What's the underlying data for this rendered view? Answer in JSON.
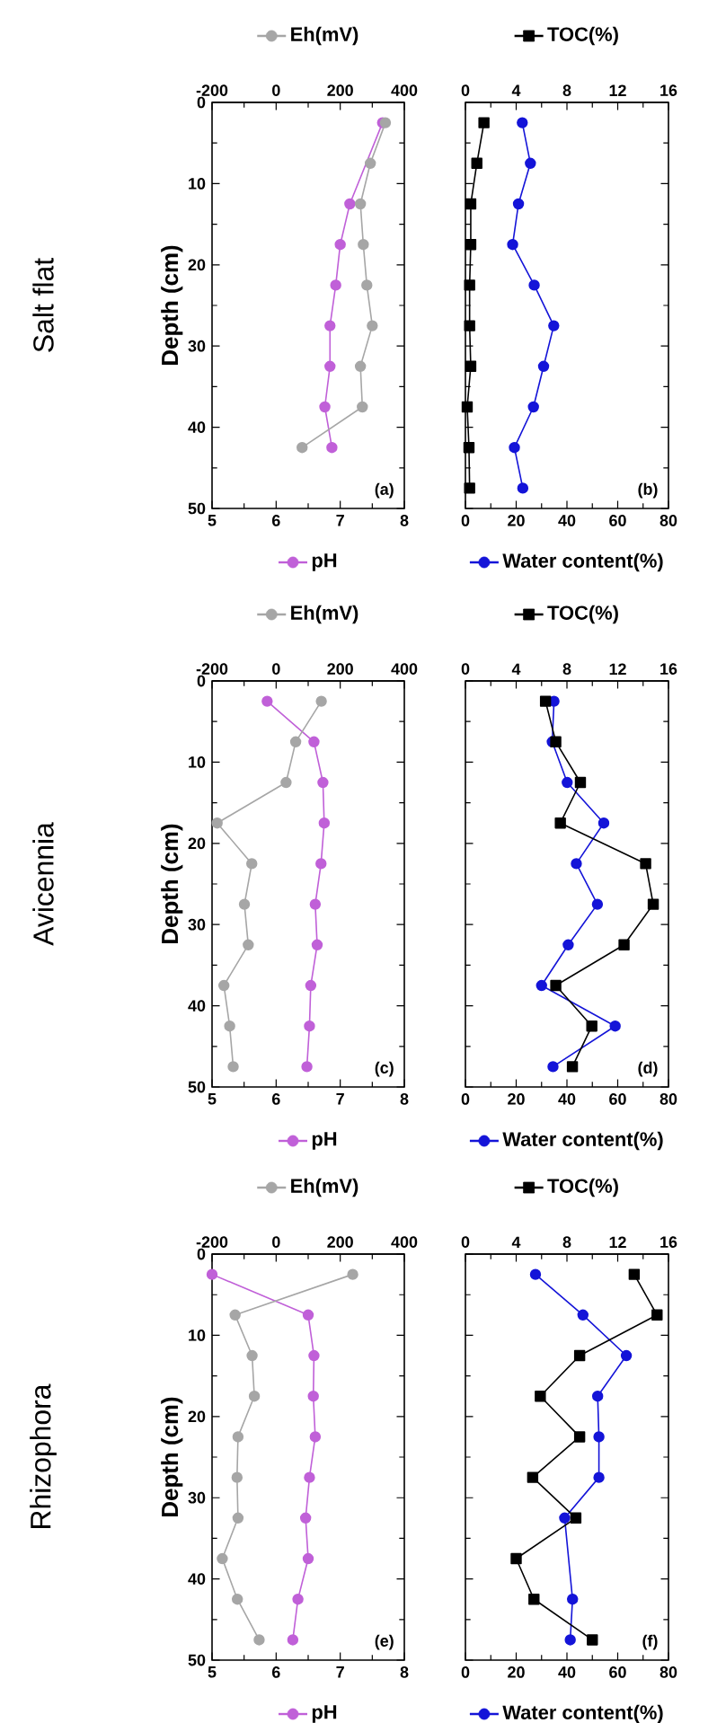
{
  "chart_data": [
    {
      "type": "line",
      "legend": "top",
      "title": "Salt flat",
      "ylabel": "Depth (cm)",
      "xlim": [
        5,
        8
      ],
      "xticks": [
        5,
        6,
        7,
        8
      ],
      "x2lim": [
        -200,
        400
      ],
      "x2ticks": [
        -200,
        0,
        200,
        400
      ],
      "ylim": [
        50,
        0
      ],
      "yticks": [
        0,
        10,
        20,
        30,
        40,
        50
      ],
      "marker": "circle",
      "line_style": "solid",
      "annotations": [
        "(a)"
      ],
      "series": [
        {
          "name": "Eh(mV)",
          "color": "#a6a6a6",
          "axis": "x2",
          "x": [
            341,
            294,
            263,
            272,
            283,
            300,
            263,
            269,
            81
          ],
          "values": [
            2.5,
            7.5,
            12.5,
            17.5,
            22.5,
            27.5,
            32.5,
            37.5,
            42.5
          ]
        },
        {
          "name": "pH",
          "color": "#c060d8",
          "x": [
            7.66,
            7.15,
            7.0,
            6.93,
            6.84,
            6.84,
            6.76,
            6.87
          ],
          "values": [
            2.5,
            12.5,
            17.5,
            22.5,
            27.5,
            32.5,
            37.5,
            42.5
          ]
        }
      ]
    },
    {
      "type": "line",
      "xlim": [
        0,
        80
      ],
      "xticks": [
        0,
        20,
        40,
        60,
        80
      ],
      "x2lim": [
        0,
        16
      ],
      "x2ticks": [
        0,
        4,
        8,
        12,
        16
      ],
      "ylim": [
        50,
        0
      ],
      "yticks": [
        0,
        10,
        20,
        30,
        40,
        50
      ],
      "tick_labels": "x",
      "legend": "top",
      "marker": "circle",
      "line_style": "solid",
      "annotations": [
        "(b)"
      ],
      "series": [
        {
          "name": "TOC(%)",
          "color": "#000000",
          "axis": "x2",
          "marker": "square",
          "x": [
            1.46,
            0.9,
            0.42,
            0.42,
            0.33,
            0.33,
            0.42,
            0.14,
            0.28,
            0.33
          ],
          "values": [
            2.5,
            7.5,
            12.5,
            17.5,
            22.5,
            27.5,
            32.5,
            37.5,
            42.5,
            47.5
          ]
        },
        {
          "name": "Water content(%)",
          "color": "#1414d8",
          "x": [
            22.4,
            25.6,
            20.9,
            18.6,
            27.1,
            34.8,
            30.8,
            26.8,
            19.3,
            22.6
          ],
          "values": [
            2.5,
            7.5,
            12.5,
            17.5,
            22.5,
            27.5,
            32.5,
            37.5,
            42.5,
            47.5
          ]
        }
      ]
    },
    {
      "type": "line",
      "legend": "top",
      "title": "Avicennia",
      "ylabel": "Depth (cm)",
      "xlim": [
        5,
        8
      ],
      "xticks": [
        5,
        6,
        7,
        8
      ],
      "x2lim": [
        -200,
        400
      ],
      "x2ticks": [
        -200,
        0,
        200,
        400
      ],
      "ylim": [
        50,
        0
      ],
      "yticks": [
        0,
        10,
        20,
        30,
        40,
        50
      ],
      "marker": "circle",
      "line_style": "solid",
      "annotations": [
        "(c)"
      ],
      "series": [
        {
          "name": "Eh(mV)",
          "color": "#a6a6a6",
          "axis": "x2",
          "x": [
            141,
            61,
            31,
            -184,
            -76,
            -99,
            -87,
            -163,
            -145,
            -134
          ],
          "values": [
            2.5,
            7.5,
            12.5,
            17.5,
            22.5,
            27.5,
            32.5,
            37.5,
            42.5,
            47.5
          ]
        },
        {
          "name": "pH",
          "color": "#c060d8",
          "x": [
            5.86,
            6.59,
            6.73,
            6.75,
            6.7,
            6.61,
            6.64,
            6.54,
            6.52,
            6.48
          ],
          "values": [
            2.5,
            7.5,
            12.5,
            17.5,
            22.5,
            27.5,
            32.5,
            37.5,
            42.5,
            47.5
          ]
        }
      ]
    },
    {
      "type": "line",
      "xlim": [
        0,
        80
      ],
      "xticks": [
        0,
        20,
        40,
        60,
        80
      ],
      "x2lim": [
        0,
        16
      ],
      "x2ticks": [
        0,
        4,
        8,
        12,
        16
      ],
      "ylim": [
        50,
        0
      ],
      "yticks": [
        0,
        10,
        20,
        30,
        40,
        50
      ],
      "tick_labels": "x",
      "legend": "top",
      "marker": "circle",
      "line_style": "solid",
      "annotations": [
        "(d)"
      ],
      "series": [
        {
          "name": "TOC(%)",
          "color": "#000000",
          "axis": "x2",
          "marker": "square",
          "x": [
            6.31,
            7.12,
            9.06,
            7.48,
            14.2,
            14.8,
            12.5,
            7.12,
            9.96,
            8.43
          ],
          "values": [
            2.5,
            7.5,
            12.5,
            17.5,
            22.5,
            27.5,
            32.5,
            37.5,
            42.5,
            47.5
          ]
        },
        {
          "name": "Water content(%)",
          "color": "#1414d8",
          "x": [
            34.9,
            34.2,
            40.1,
            54.5,
            43.7,
            52.0,
            40.5,
            30.0,
            59.0,
            34.5
          ],
          "values": [
            2.5,
            7.5,
            12.5,
            17.5,
            22.5,
            27.5,
            32.5,
            37.5,
            42.5,
            47.5
          ]
        }
      ]
    },
    {
      "type": "line",
      "legend": "top",
      "title": "Rhizophora",
      "ylabel": "Depth (cm)",
      "xlim": [
        5,
        8
      ],
      "xticks": [
        5,
        6,
        7,
        8
      ],
      "x2lim": [
        -200,
        400
      ],
      "x2ticks": [
        -200,
        0,
        200,
        400
      ],
      "ylim": [
        50,
        0
      ],
      "yticks": [
        0,
        10,
        20,
        30,
        40,
        50
      ],
      "marker": "circle",
      "line_style": "solid",
      "annotations": [
        "(e)"
      ],
      "series": [
        {
          "name": "Eh(mV)",
          "color": "#a6a6a6",
          "axis": "x2",
          "x": [
            239,
            -128,
            -75,
            -68,
            -119,
            -122,
            -119,
            -168,
            -121,
            -53
          ],
          "values": [
            2.5,
            7.5,
            12.5,
            17.5,
            22.5,
            27.5,
            32.5,
            37.5,
            42.5,
            47.5
          ]
        },
        {
          "name": "pH",
          "color": "#c060d8",
          "x": [
            5.0,
            6.5,
            6.59,
            6.58,
            6.61,
            6.52,
            6.46,
            6.5,
            6.34,
            6.26
          ],
          "values": [
            2.5,
            7.5,
            12.5,
            17.5,
            22.5,
            27.5,
            32.5,
            37.5,
            42.5,
            47.5
          ]
        }
      ]
    },
    {
      "type": "line",
      "xlim": [
        0,
        80
      ],
      "xticks": [
        0,
        20,
        40,
        60,
        80
      ],
      "x2lim": [
        0,
        16
      ],
      "x2ticks": [
        0,
        4,
        8,
        12,
        16
      ],
      "ylim": [
        50,
        0
      ],
      "yticks": [
        0,
        10,
        20,
        30,
        40,
        50
      ],
      "tick_labels": "x",
      "legend": "top",
      "marker": "circle",
      "line_style": "solid",
      "annotations": [
        "(f)"
      ],
      "series": [
        {
          "name": "TOC(%)",
          "color": "#000000",
          "axis": "x2",
          "marker": "square",
          "x": [
            13.3,
            15.1,
            9.0,
            5.9,
            9.0,
            5.3,
            8.7,
            4.0,
            5.4,
            10.0
          ],
          "values": [
            2.5,
            7.5,
            12.5,
            17.5,
            22.5,
            27.5,
            32.5,
            37.5,
            42.5,
            47.5
          ]
        },
        {
          "name": "Water content(%)",
          "color": "#1414d8",
          "x": [
            27.6,
            46.3,
            63.4,
            52.1,
            52.6,
            52.6,
            39.1,
            42.2,
            41.3
          ],
          "values": [
            2.5,
            7.5,
            12.5,
            17.5,
            22.5,
            27.5,
            32.5,
            42.5,
            47.5
          ]
        }
      ]
    }
  ]
}
